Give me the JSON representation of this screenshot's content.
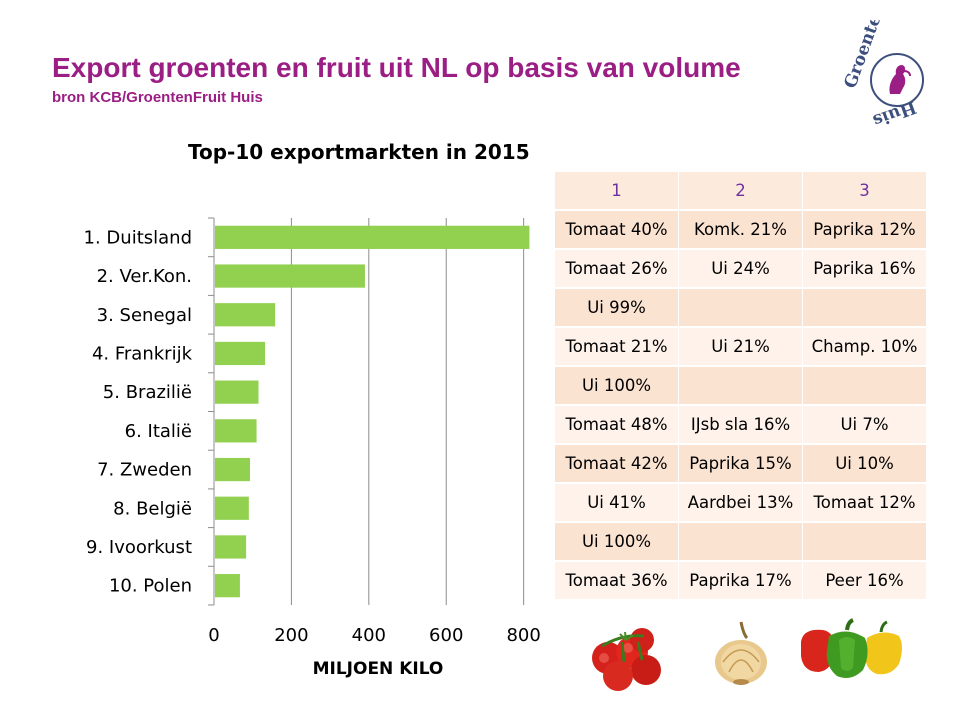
{
  "header": {
    "title": "Export groenten en fruit uit NL op basis van volume",
    "subtitle": "bron KCB/GroentenFruit Huis"
  },
  "logo": {
    "text": "Groenten Fruit Huis",
    "icon": "woman-silhouette-icon"
  },
  "chart_data": {
    "type": "bar",
    "orientation": "horizontal",
    "title": "Top-10 exportmarkten in 2015",
    "xlabel": "MILJOEN KILO",
    "ylabel": "",
    "xlim": [
      0,
      850
    ],
    "xticks": [
      "0",
      "200",
      "400",
      "600",
      "800"
    ],
    "grid": true,
    "bar_color": "#92d050",
    "categories": [
      "1. Duitsland",
      "2. Ver.Kon.",
      "3. Senegal",
      "4. Frankrijk",
      "5. Brazilië",
      "6. Italië",
      "7. Zweden",
      "8. België",
      "9. Ivoorkust",
      "10. Polen"
    ],
    "values": [
      815,
      390,
      158,
      132,
      115,
      110,
      93,
      90,
      83,
      67
    ]
  },
  "top_products": {
    "headers": [
      "1",
      "2",
      "3"
    ],
    "rows": [
      [
        "Tomaat 40%",
        "Komk. 21%",
        "Paprika 12%"
      ],
      [
        "Tomaat 26%",
        "Ui 24%",
        "Paprika 16%"
      ],
      [
        "Ui 99%",
        "",
        ""
      ],
      [
        "Tomaat 21%",
        "Ui 21%",
        "Champ. 10%"
      ],
      [
        "Ui 100%",
        "",
        ""
      ],
      [
        "Tomaat 48%",
        "IJsb sla 16%",
        "Ui 7%"
      ],
      [
        "Tomaat 42%",
        "Paprika 15%",
        "Ui 10%"
      ],
      [
        "Ui 41%",
        "Aardbei 13%",
        "Tomaat 12%"
      ],
      [
        "Ui 100%",
        "",
        ""
      ],
      [
        "Tomaat 36%",
        "Paprika 17%",
        "Peer 16%"
      ]
    ]
  },
  "photos": [
    {
      "name": "tomatoes-photo",
      "label": "tomatoes"
    },
    {
      "name": "onion-photo",
      "label": "onion"
    },
    {
      "name": "peppers-photo",
      "label": "peppers"
    }
  ]
}
